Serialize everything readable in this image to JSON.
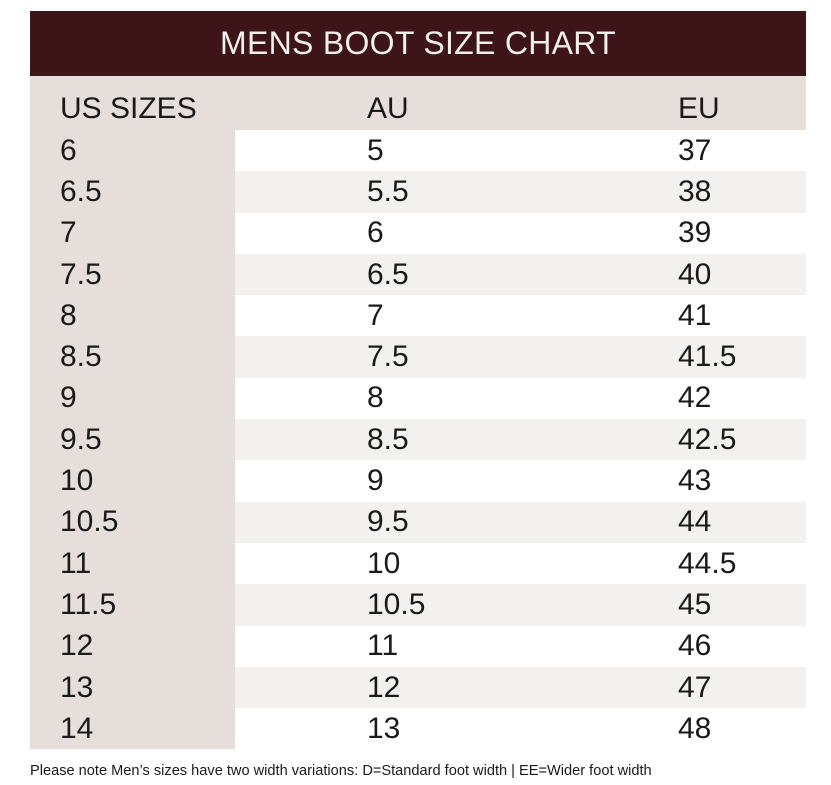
{
  "title": "MENS BOOT SIZE CHART",
  "colors": {
    "title_bar": "#3d1418",
    "title_text": "#f2eeec",
    "header_bg": "#e5dedb",
    "stripe": "#f3f1ef"
  },
  "columns": {
    "us": "US SIZES",
    "au": "AU",
    "eu": "EU"
  },
  "rows": [
    {
      "us": "6",
      "au": "5",
      "eu": "37"
    },
    {
      "us": "6.5",
      "au": "5.5",
      "eu": "38"
    },
    {
      "us": "7",
      "au": "6",
      "eu": "39"
    },
    {
      "us": "7.5",
      "au": "6.5",
      "eu": "40"
    },
    {
      "us": "8",
      "au": "7",
      "eu": "41"
    },
    {
      "us": "8.5",
      "au": "7.5",
      "eu": "41.5"
    },
    {
      "us": "9",
      "au": "8",
      "eu": "42"
    },
    {
      "us": "9.5",
      "au": "8.5",
      "eu": "42.5"
    },
    {
      "us": "10",
      "au": "9",
      "eu": "43"
    },
    {
      "us": "10.5",
      "au": "9.5",
      "eu": "44"
    },
    {
      "us": "11",
      "au": "10",
      "eu": "44.5"
    },
    {
      "us": "11.5",
      "au": "10.5",
      "eu": "45"
    },
    {
      "us": "12",
      "au": "11",
      "eu": "46"
    },
    {
      "us": "13",
      "au": "12",
      "eu": "47"
    },
    {
      "us": "14",
      "au": "13",
      "eu": "48"
    }
  ],
  "footnote": "Please note Men’s sizes have two width variations: D=Standard foot width | EE=Wider foot width"
}
